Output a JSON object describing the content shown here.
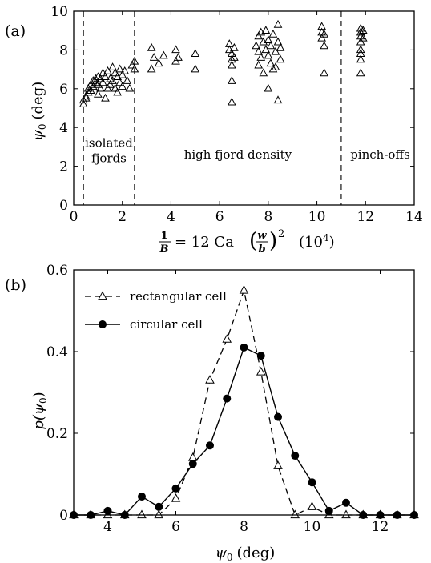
{
  "chart_data": [
    {
      "panel_label": "(a)",
      "type": "scatter",
      "xlabel": "1/B = 12 Ca (w/b)² (10⁴)",
      "xlabel_parts": {
        "lhs_numerator": "1",
        "lhs_denominator": "B",
        "equals": "= 12 Ca",
        "frac_numerator": "w",
        "frac_denominator": "b",
        "exponent": "2",
        "unit": "(10",
        "unit_exp": "4",
        "unit_close": ")"
      },
      "ylabel": "ψ0 (deg)",
      "ylabel_parts": {
        "symbol": "ψ",
        "sub": "0",
        "unit": "(deg)"
      },
      "xlim": [
        0,
        14
      ],
      "ylim": [
        0,
        10
      ],
      "xticks": [
        0,
        2,
        4,
        6,
        8,
        10,
        12,
        14
      ],
      "yticks": [
        0,
        2,
        4,
        6,
        8,
        10
      ],
      "marker": "open-triangle",
      "vlines": [
        0.4,
        2.5,
        11.0
      ],
      "annotations": [
        {
          "lines": [
            "isolated",
            "fjords"
          ],
          "x": 1.45,
          "y": 3.0
        },
        {
          "lines": [
            "high fjord density"
          ],
          "x": 6.75,
          "y": 2.4
        },
        {
          "lines": [
            "pinch-offs"
          ],
          "x": 12.6,
          "y": 2.4
        }
      ],
      "points": [
        [
          0.4,
          5.2
        ],
        [
          0.4,
          5.4
        ],
        [
          0.5,
          5.6
        ],
        [
          0.5,
          5.5
        ],
        [
          0.6,
          5.8
        ],
        [
          0.6,
          6.0
        ],
        [
          0.7,
          6.2
        ],
        [
          0.7,
          5.9
        ],
        [
          0.8,
          6.4
        ],
        [
          0.8,
          6.1
        ],
        [
          0.9,
          6.5
        ],
        [
          0.9,
          6.3
        ],
        [
          1.0,
          6.6
        ],
        [
          1.0,
          6.2
        ],
        [
          1.0,
          5.7
        ],
        [
          1.1,
          6.5
        ],
        [
          1.1,
          6.0
        ],
        [
          1.2,
          6.3
        ],
        [
          1.2,
          6.8
        ],
        [
          1.3,
          6.6
        ],
        [
          1.3,
          5.5
        ],
        [
          1.4,
          6.0
        ],
        [
          1.4,
          6.9
        ],
        [
          1.5,
          6.5
        ],
        [
          1.5,
          6.2
        ],
        [
          1.6,
          7.1
        ],
        [
          1.6,
          6.4
        ],
        [
          1.7,
          6.8
        ],
        [
          1.7,
          6.0
        ],
        [
          1.8,
          6.6
        ],
        [
          1.8,
          5.8
        ],
        [
          1.9,
          7.0
        ],
        [
          1.9,
          6.3
        ],
        [
          2.0,
          6.7
        ],
        [
          2.0,
          6.1
        ],
        [
          2.1,
          6.9
        ],
        [
          2.2,
          6.4
        ],
        [
          2.3,
          6.0
        ],
        [
          2.4,
          7.2
        ],
        [
          2.5,
          7.0
        ],
        [
          2.5,
          7.4
        ],
        [
          3.2,
          7.0
        ],
        [
          3.2,
          8.1
        ],
        [
          3.3,
          7.6
        ],
        [
          3.5,
          7.3
        ],
        [
          3.7,
          7.7
        ],
        [
          4.2,
          7.4
        ],
        [
          4.2,
          8.0
        ],
        [
          4.3,
          7.6
        ],
        [
          5.0,
          7.8
        ],
        [
          5.0,
          7.0
        ],
        [
          6.4,
          8.3
        ],
        [
          6.4,
          8.0
        ],
        [
          6.5,
          7.8
        ],
        [
          6.5,
          7.5
        ],
        [
          6.5,
          7.2
        ],
        [
          6.5,
          6.4
        ],
        [
          6.5,
          5.3
        ],
        [
          6.6,
          8.1
        ],
        [
          6.6,
          7.6
        ],
        [
          7.5,
          8.2
        ],
        [
          7.6,
          8.7
        ],
        [
          7.6,
          7.9
        ],
        [
          7.6,
          7.2
        ],
        [
          7.7,
          8.9
        ],
        [
          7.7,
          7.6
        ],
        [
          7.8,
          6.8
        ],
        [
          7.8,
          8.4
        ],
        [
          7.9,
          8.0
        ],
        [
          7.9,
          9.0
        ],
        [
          8.0,
          7.7
        ],
        [
          8.0,
          6.0
        ],
        [
          8.0,
          8.5
        ],
        [
          8.1,
          7.3
        ],
        [
          8.1,
          8.2
        ],
        [
          8.2,
          8.8
        ],
        [
          8.2,
          7.0
        ],
        [
          8.3,
          7.9
        ],
        [
          8.3,
          7.1
        ],
        [
          8.4,
          9.3
        ],
        [
          8.4,
          8.4
        ],
        [
          8.4,
          5.4
        ],
        [
          8.5,
          8.1
        ],
        [
          8.5,
          7.5
        ],
        [
          10.2,
          9.2
        ],
        [
          10.2,
          8.9
        ],
        [
          10.2,
          8.6
        ],
        [
          10.3,
          8.2
        ],
        [
          10.3,
          6.8
        ],
        [
          10.3,
          8.8
        ],
        [
          11.8,
          9.1
        ],
        [
          11.8,
          8.9
        ],
        [
          11.8,
          8.7
        ],
        [
          11.8,
          8.4
        ],
        [
          11.8,
          8.0
        ],
        [
          11.8,
          7.8
        ],
        [
          11.8,
          7.5
        ],
        [
          11.8,
          6.8
        ],
        [
          11.9,
          9.0
        ],
        [
          11.9,
          8.6
        ]
      ]
    },
    {
      "panel_label": "(b)",
      "type": "line",
      "xlabel": "ψ0 (deg)",
      "xlabel_parts": {
        "symbol": "ψ",
        "sub": "0",
        "unit": "(deg)"
      },
      "ylabel": "p(ψ0)",
      "ylabel_parts": {
        "prefix": "p(",
        "symbol": "ψ",
        "sub": "0",
        "suffix": ")"
      },
      "xlim": [
        3,
        13
      ],
      "ylim": [
        0,
        0.6
      ],
      "xticks": [
        4,
        6,
        8,
        10,
        12
      ],
      "yticks": [
        0,
        0.2,
        0.4,
        0.6
      ],
      "ytick_labels": [
        "0",
        "0.2",
        "0.4",
        "0.6"
      ],
      "legend_position": "top-left",
      "series": [
        {
          "name": "rectangular cell",
          "style": "dashed",
          "marker": "open-triangle",
          "x": [
            3.0,
            3.5,
            4.0,
            4.5,
            5.0,
            5.5,
            6.0,
            6.5,
            7.0,
            7.5,
            8.0,
            8.5,
            9.0,
            9.5,
            10.0,
            10.5,
            11.0,
            11.5,
            12.0,
            12.5,
            13.0
          ],
          "y": [
            0.0,
            0.0,
            0.0,
            0.0,
            0.0,
            0.0,
            0.04,
            0.14,
            0.33,
            0.43,
            0.55,
            0.35,
            0.12,
            0.0,
            0.02,
            0.0,
            0.0,
            0.0,
            0.0,
            0.0,
            0.0
          ]
        },
        {
          "name": "circular cell",
          "style": "solid",
          "marker": "filled-circle",
          "x": [
            3.0,
            3.5,
            4.0,
            4.5,
            5.0,
            5.5,
            6.0,
            6.5,
            7.0,
            7.5,
            8.0,
            8.5,
            9.0,
            9.5,
            10.0,
            10.5,
            11.0,
            11.5,
            12.0,
            12.5,
            13.0
          ],
          "y": [
            0.0,
            0.0,
            0.01,
            0.0,
            0.045,
            0.02,
            0.065,
            0.125,
            0.17,
            0.285,
            0.41,
            0.39,
            0.24,
            0.145,
            0.08,
            0.01,
            0.03,
            0.0,
            0.0,
            0.0,
            0.0
          ]
        }
      ]
    }
  ]
}
